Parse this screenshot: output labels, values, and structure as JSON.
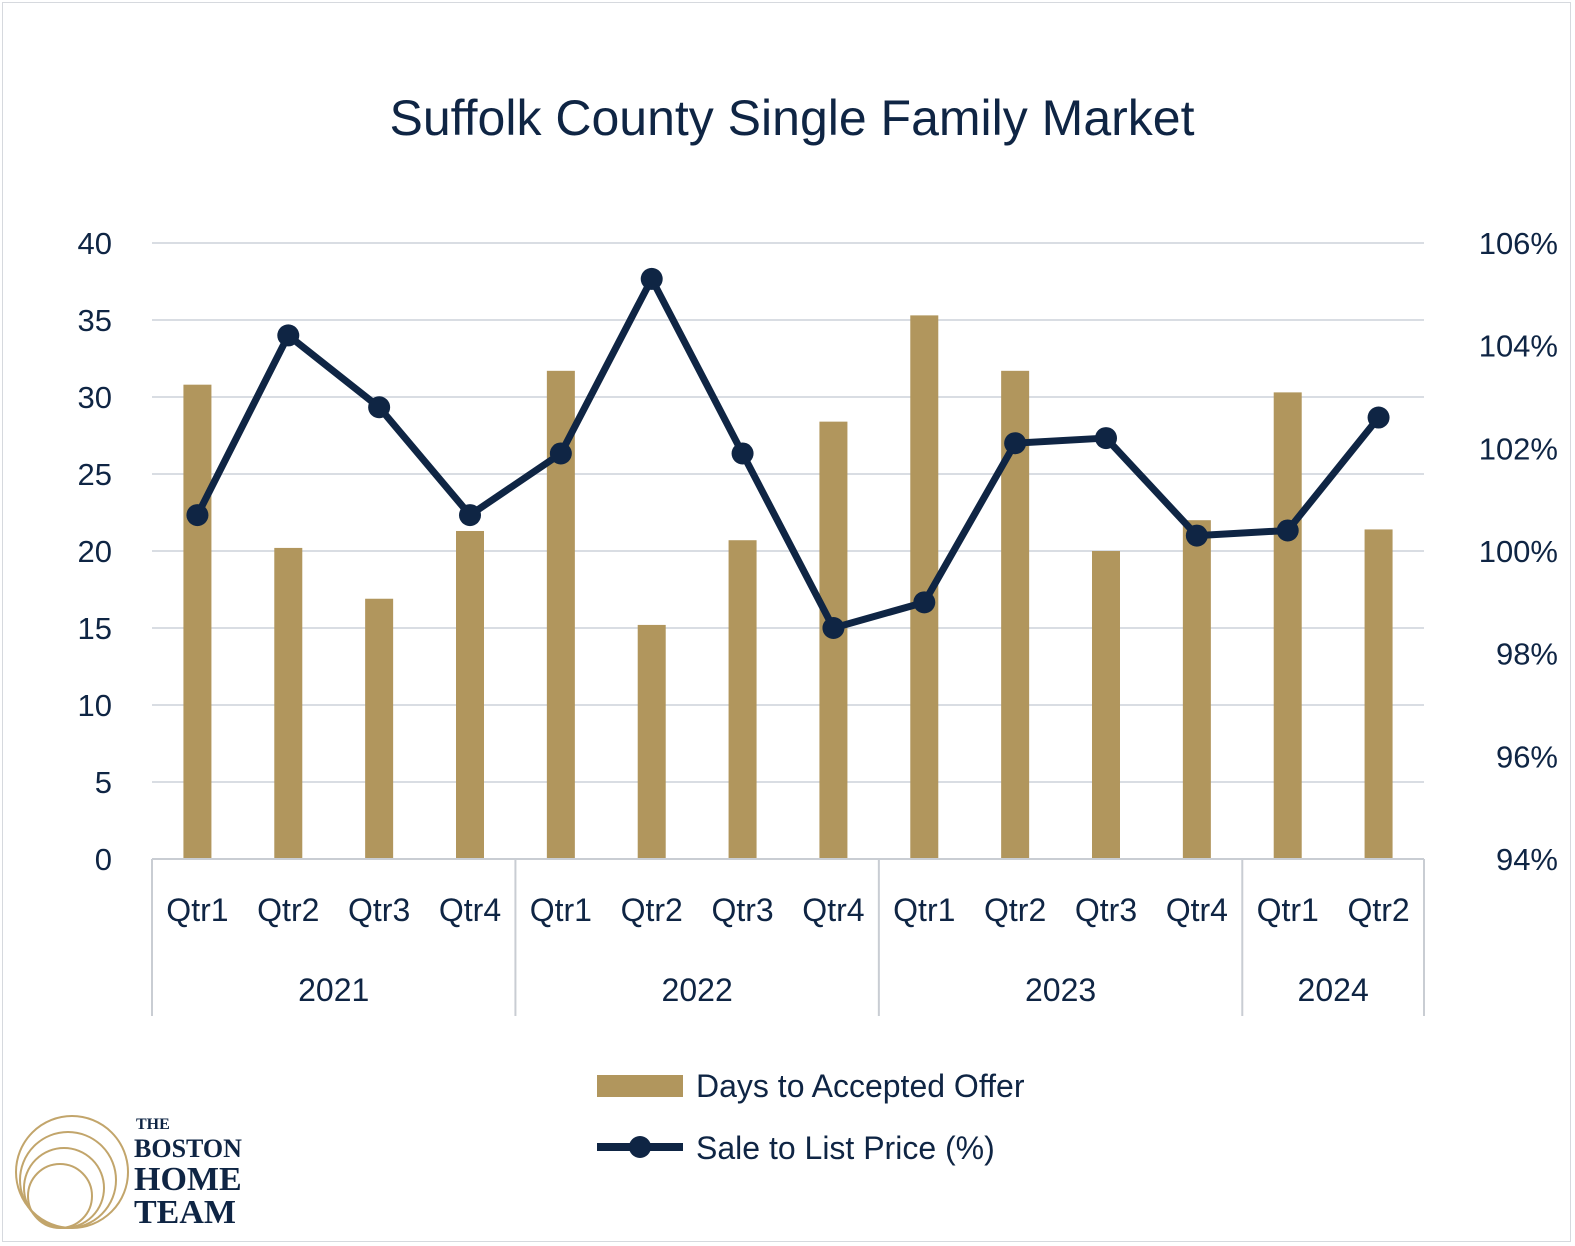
{
  "chart_data": {
    "type": "bar+line",
    "title": "Suffolk County Single Family Market",
    "categories": [
      "Qtr1",
      "Qtr2",
      "Qtr3",
      "Qtr4",
      "Qtr1",
      "Qtr2",
      "Qtr3",
      "Qtr4",
      "Qtr1",
      "Qtr2",
      "Qtr3",
      "Qtr4",
      "Qtr1",
      "Qtr2"
    ],
    "groups": [
      {
        "label": "2021",
        "count": 4
      },
      {
        "label": "2022",
        "count": 4
      },
      {
        "label": "2023",
        "count": 4
      },
      {
        "label": "2024",
        "count": 2
      }
    ],
    "series": [
      {
        "name": "Days to Accepted Offer",
        "type": "bar",
        "axis": "left",
        "values": [
          30.8,
          20.2,
          16.9,
          21.3,
          31.7,
          15.2,
          20.7,
          28.4,
          35.3,
          31.7,
          20.0,
          22.0,
          30.3,
          21.4
        ]
      },
      {
        "name": "Sale to List Price (%)",
        "type": "line",
        "axis": "right",
        "values": [
          100.7,
          104.2,
          102.8,
          100.7,
          101.9,
          105.3,
          101.9,
          98.5,
          99.0,
          102.1,
          102.2,
          100.3,
          100.4,
          102.6
        ]
      }
    ],
    "y_left": {
      "min": 0,
      "max": 40,
      "ticks": [
        "0",
        "5",
        "10",
        "15",
        "20",
        "25",
        "30",
        "35",
        "40"
      ]
    },
    "y_right": {
      "min": 94,
      "max": 106,
      "ticks": [
        "94%",
        "96%",
        "98%",
        "100%",
        "102%",
        "104%",
        "106%"
      ]
    },
    "grid": true,
    "legend_position": "bottom",
    "colors": {
      "bar": "#b1965d",
      "line": "#0f2544",
      "grid": "#d9dde3",
      "text": "#0f2544"
    }
  },
  "logo": {
    "line1": "THE",
    "line2": "BOSTON",
    "line3": "HOME",
    "line4": "TEAM",
    "ring_color": "#c2a56b"
  }
}
